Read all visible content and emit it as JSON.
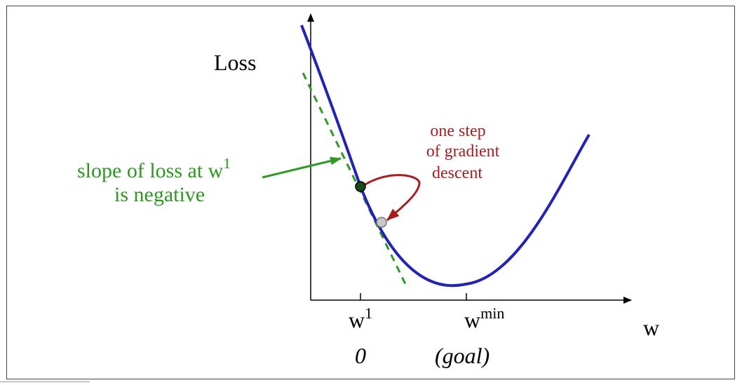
{
  "y_label": "Loss",
  "x_label": "w",
  "tick_w1": {
    "base": "w",
    "sup": "1"
  },
  "tick_wmin": {
    "base": "w",
    "sup": "min"
  },
  "below_w1": "0",
  "below_wmin": "(goal)",
  "slope_note": {
    "line1_base": "slope of loss at w",
    "line1_sup": "1",
    "line2": "is negative"
  },
  "step_note": {
    "line1": "one step",
    "line2": "of gradient",
    "line3": "descent"
  },
  "colors": {
    "curve": "#2222bb",
    "tangent": "#2f9a24",
    "slope_text": "#2a9a1e",
    "step": "#a81c1c",
    "axis": "#000000"
  }
}
